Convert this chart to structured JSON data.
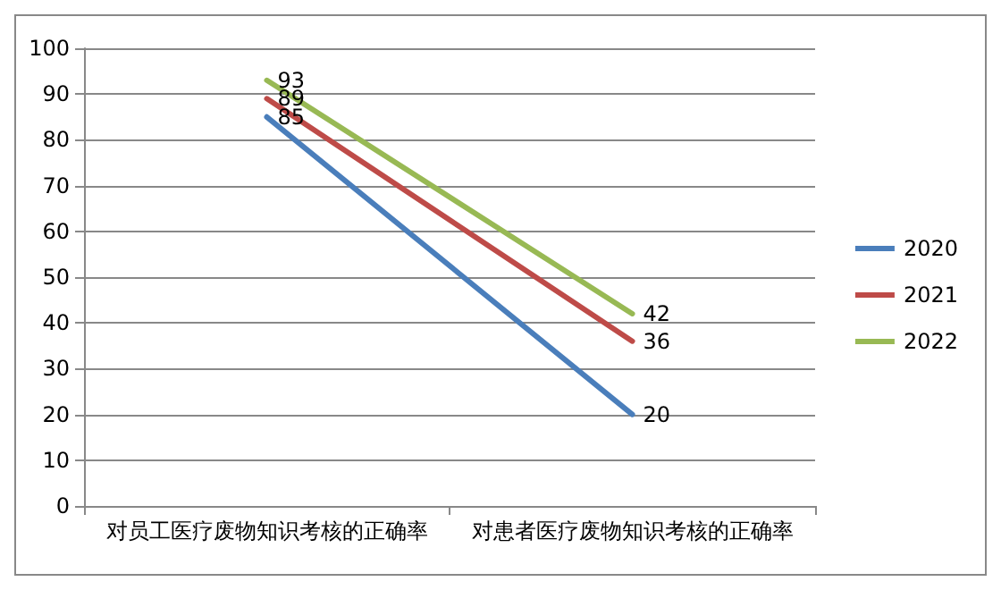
{
  "chart_data": {
    "type": "line",
    "categories": [
      "对员工医疗废物知识考核的正确率",
      "对患者医疗废物知识考核的正确率"
    ],
    "series": [
      {
        "name": "2020",
        "color": "#4a7ebb",
        "values": [
          85,
          20
        ]
      },
      {
        "name": "2021",
        "color": "#be4b48",
        "values": [
          89,
          36
        ]
      },
      {
        "name": "2022",
        "color": "#98b954",
        "values": [
          93,
          42
        ]
      }
    ],
    "ylim": [
      0,
      100
    ],
    "yticks": [
      0,
      10,
      20,
      30,
      40,
      50,
      60,
      70,
      80,
      90,
      100
    ],
    "grid": "y",
    "legend": "right",
    "data_labels": true,
    "marker": "none",
    "line_style": "solid"
  }
}
